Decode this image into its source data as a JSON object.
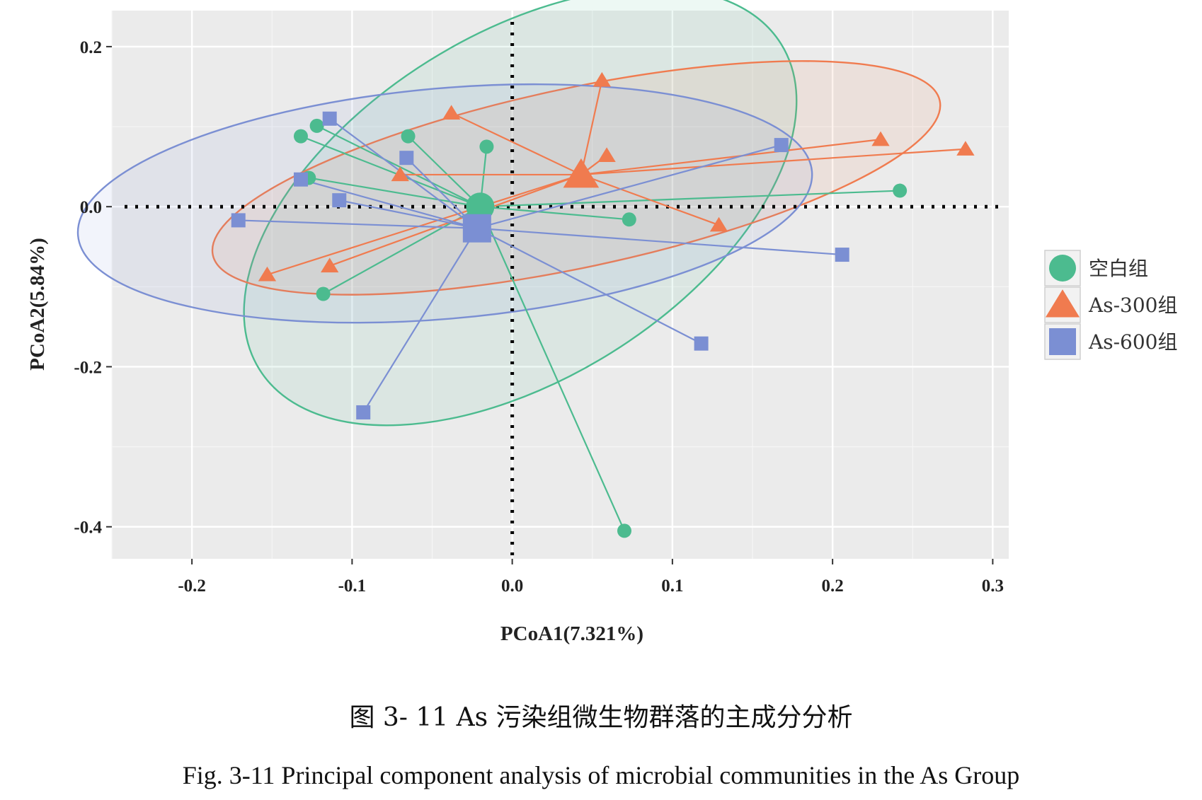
{
  "chart_data": {
    "type": "scatter",
    "xlabel": "PCoA1(7.321%)",
    "ylabel": "PCoA2(5.84%)",
    "xlim": [
      -0.25,
      0.31
    ],
    "ylim": [
      -0.44,
      0.245
    ],
    "xticks": [
      -0.2,
      -0.1,
      0.0,
      0.1,
      0.2,
      0.3
    ],
    "xtick_labels": [
      "-0.2",
      "-0.1",
      "0.0",
      "0.1",
      "0.2",
      "0.3"
    ],
    "yticks": [
      0.2,
      0.0,
      -0.2,
      -0.4
    ],
    "ytick_labels": [
      "0.2",
      "0.0",
      "-0.2",
      "-0.4"
    ],
    "grid": true,
    "reference_lines": {
      "x": 0,
      "y": 0,
      "style": "dotted"
    },
    "legend_position": "right",
    "series": [
      {
        "name": "空白组",
        "marker": "circle",
        "color": "#4cbb8f",
        "centroid": [
          -0.02,
          0.0
        ],
        "ellipse": {
          "center": [
            0.005,
            0.0
          ],
          "rx": 0.192,
          "ry": 0.215,
          "angle": -32
        },
        "points": [
          [
            -0.132,
            0.088
          ],
          [
            -0.122,
            0.101
          ],
          [
            -0.127,
            0.036
          ],
          [
            -0.065,
            0.088
          ],
          [
            -0.016,
            0.075
          ],
          [
            0.073,
            -0.016
          ],
          [
            0.242,
            0.02
          ],
          [
            -0.118,
            -0.109
          ],
          [
            0.07,
            -0.405
          ]
        ]
      },
      {
        "name": "As-300组",
        "marker": "triangle",
        "color": "#f07b4f",
        "centroid": [
          0.043,
          0.04
        ],
        "ellipse": {
          "center": [
            0.04,
            0.036
          ],
          "rx": 0.232,
          "ry": 0.112,
          "angle": -12
        },
        "points": [
          [
            -0.038,
            0.117
          ],
          [
            0.056,
            0.158
          ],
          [
            0.059,
            0.064
          ],
          [
            0.23,
            0.084
          ],
          [
            0.283,
            0.072
          ],
          [
            0.129,
            -0.023
          ],
          [
            -0.153,
            -0.085
          ],
          [
            -0.114,
            -0.074
          ],
          [
            -0.07,
            0.04
          ]
        ]
      },
      {
        "name": "As-600组",
        "marker": "square",
        "color": "#7b8fd3",
        "centroid": [
          -0.022,
          -0.027
        ],
        "ellipse": {
          "center": [
            -0.042,
            0.004
          ],
          "rx": 0.23,
          "ry": 0.144,
          "angle": -5
        },
        "points": [
          [
            -0.114,
            0.11
          ],
          [
            -0.066,
            0.061
          ],
          [
            -0.132,
            0.034
          ],
          [
            -0.108,
            0.008
          ],
          [
            -0.171,
            -0.017
          ],
          [
            0.168,
            0.077
          ],
          [
            0.206,
            -0.06
          ],
          [
            0.118,
            -0.171
          ],
          [
            -0.093,
            -0.257
          ]
        ]
      }
    ]
  },
  "caption": {
    "cn": "图 3- 11 As 污染组微生物群落的主成分分析",
    "en": "Fig. 3-11 Principal component analysis of microbial communities in the As Group"
  }
}
